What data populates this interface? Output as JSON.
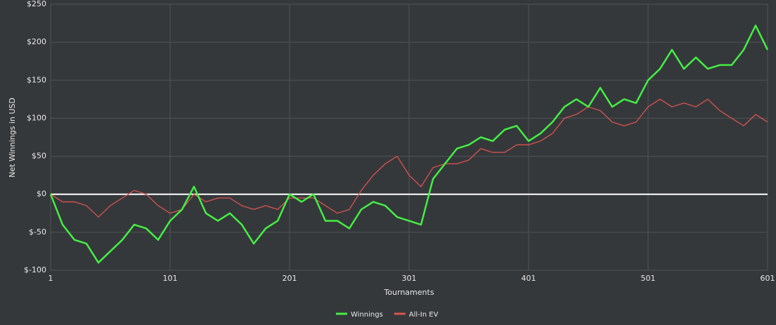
{
  "chart_data": {
    "type": "line",
    "x_label": "Tournaments",
    "y_label": "Net Winnings in USD",
    "xlim": [
      1,
      601
    ],
    "xticks": [
      1,
      101,
      201,
      301,
      401,
      501,
      601
    ],
    "ylim": [
      -100,
      250
    ],
    "yticks": [
      {
        "value": -100,
        "label": "$-100"
      },
      {
        "value": -50,
        "label": "$-50"
      },
      {
        "value": 0,
        "label": "$0"
      },
      {
        "value": 50,
        "label": "$50"
      },
      {
        "value": 100,
        "label": "$100"
      },
      {
        "value": 150,
        "label": "$150"
      },
      {
        "value": 200,
        "label": "$200"
      },
      {
        "value": 250,
        "label": "$250"
      }
    ],
    "grid": true,
    "legend": "bottom",
    "x": [
      1,
      11,
      21,
      31,
      41,
      51,
      61,
      71,
      81,
      91,
      101,
      111,
      121,
      131,
      141,
      151,
      161,
      171,
      181,
      191,
      201,
      211,
      221,
      231,
      241,
      251,
      261,
      271,
      281,
      291,
      301,
      311,
      321,
      331,
      341,
      351,
      361,
      371,
      381,
      391,
      401,
      411,
      421,
      431,
      441,
      451,
      461,
      471,
      481,
      491,
      501,
      511,
      521,
      531,
      541,
      551,
      561,
      571,
      581,
      591,
      601
    ],
    "series": [
      {
        "name": "Winnings",
        "color": "#44ee44",
        "values": [
          0,
          -40,
          -60,
          -65,
          -90,
          -75,
          -60,
          -40,
          -45,
          -60,
          -35,
          -20,
          10,
          -25,
          -35,
          -25,
          -40,
          -65,
          -45,
          -35,
          0,
          -10,
          0,
          -35,
          -35,
          -45,
          -20,
          -10,
          -15,
          -30,
          -35,
          -40,
          20,
          40,
          60,
          65,
          75,
          70,
          85,
          90,
          70,
          80,
          95,
          115,
          125,
          115,
          140,
          115,
          125,
          120,
          150,
          165,
          190,
          165,
          180,
          165,
          170,
          170,
          190,
          222,
          190
        ]
      },
      {
        "name": "All-In EV",
        "color": "#d9534f",
        "values": [
          0,
          -10,
          -10,
          -15,
          -30,
          -15,
          -5,
          5,
          0,
          -15,
          -25,
          -20,
          0,
          -10,
          -5,
          -5,
          -15,
          -20,
          -15,
          -20,
          -5,
          -5,
          -5,
          -15,
          -25,
          -20,
          5,
          25,
          40,
          50,
          25,
          10,
          35,
          40,
          40,
          45,
          60,
          55,
          55,
          65,
          65,
          70,
          80,
          100,
          105,
          115,
          110,
          95,
          90,
          95,
          115,
          125,
          115,
          120,
          115,
          125,
          110,
          100,
          90,
          105,
          95
        ]
      }
    ]
  }
}
